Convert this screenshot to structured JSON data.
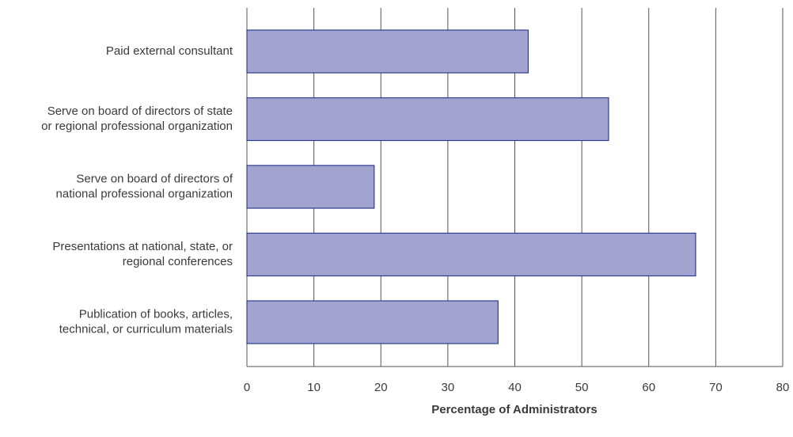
{
  "chart_data": {
    "type": "hbar",
    "categories": [
      "Paid external consultant",
      "Serve on board of directors of state\nor regional professional organization",
      "Serve on board of directors of\nnational professional organization",
      "Presentations at national, state, or\nregional conferences",
      "Publication of books, articles,\ntechnical, or curriculum materials"
    ],
    "values": [
      42,
      54,
      19,
      67,
      37.5
    ],
    "color": "#a3a3cf",
    "xlabel": "Percentage of Administrators",
    "xlim": [
      0,
      80
    ],
    "xticks": [
      0,
      10,
      20,
      30,
      40,
      50,
      60,
      70,
      80
    ],
    "grid": true
  }
}
